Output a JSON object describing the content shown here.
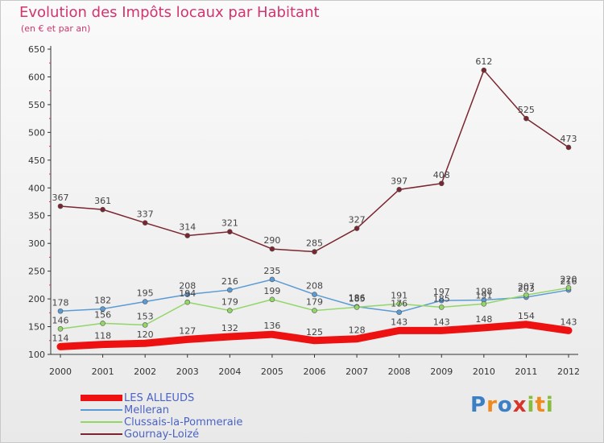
{
  "title": "Evolution des Impôts locaux par Habitant",
  "subtitle": "(en € et par an)",
  "brand": "Proxiti",
  "colors": {
    "title": "#d4336e"
  },
  "chart_data": {
    "type": "line",
    "title": "Evolution des Impôts locaux par Habitant",
    "subtitle": "(en € et par an)",
    "x": [
      "2000",
      "2001",
      "2002",
      "2003",
      "2004",
      "2005",
      "2006",
      "2007",
      "2008",
      "2009",
      "2010",
      "2011",
      "2012"
    ],
    "ylim": [
      100,
      650
    ],
    "yticks": [
      100,
      150,
      200,
      250,
      300,
      350,
      400,
      450,
      500,
      550,
      600,
      650
    ],
    "grid": false,
    "legend": "bottom-left",
    "series": [
      {
        "name": "LES ALLEUDS",
        "color": "#ee1111",
        "values": [
          114,
          118,
          120,
          127,
          132,
          136,
          125,
          128,
          143,
          143,
          148,
          154,
          143
        ]
      },
      {
        "name": "Melleran",
        "color": "#5b9bd5",
        "values": [
          178,
          182,
          195,
          208,
          216,
          235,
          208,
          186,
          176,
          197,
          198,
          203,
          216
        ]
      },
      {
        "name": "Clussais-la-Pommeraie",
        "color": "#92d668",
        "values": [
          146,
          156,
          153,
          194,
          179,
          199,
          179,
          185,
          191,
          185,
          191,
          207,
          220
        ]
      },
      {
        "name": "Gournay-Loizé",
        "color": "#7a2530",
        "values": [
          367,
          361,
          337,
          314,
          321,
          290,
          285,
          327,
          397,
          408,
          612,
          525,
          473
        ]
      }
    ]
  }
}
